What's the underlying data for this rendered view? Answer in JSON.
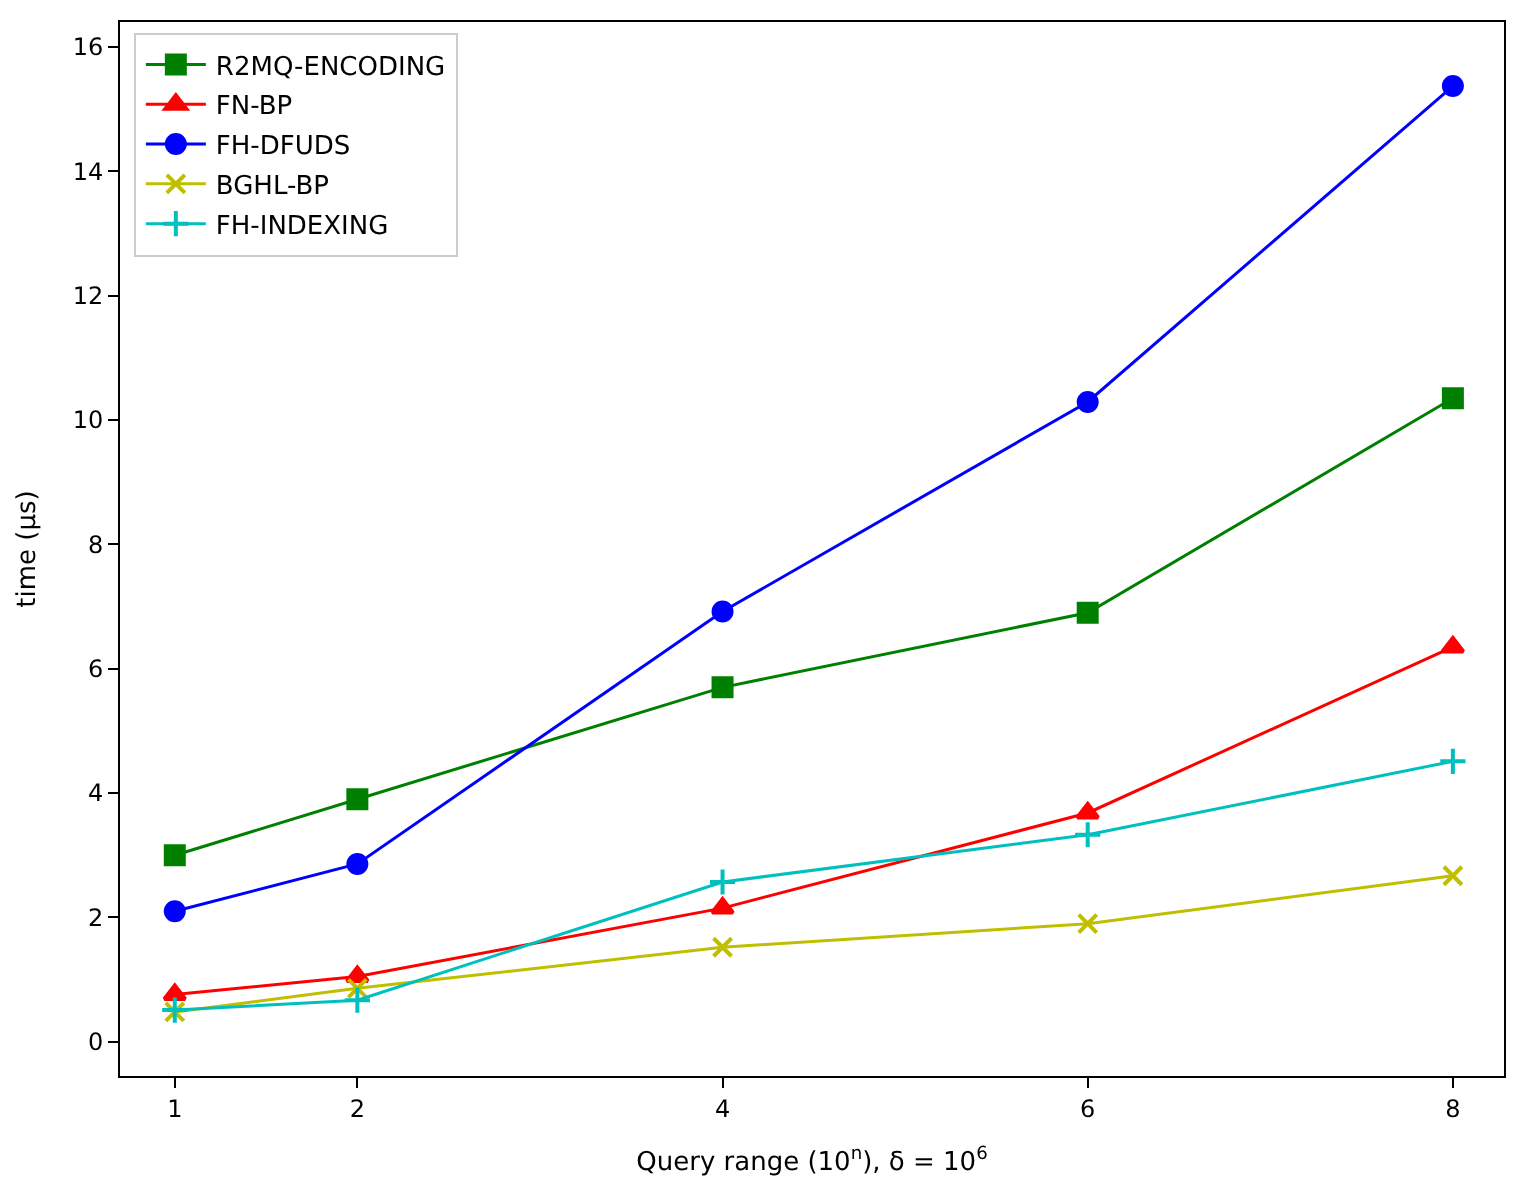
{
  "chart_data": {
    "type": "line",
    "xlabel": "Query range (10$^{n}$), δ = 10$^{6}$",
    "ylabel": "time (μs)",
    "x": [
      1,
      2,
      4,
      6,
      8
    ],
    "series": [
      {
        "name": "R2MQ-ENCODING",
        "color": "#008000",
        "marker": "square",
        "values": [
          3.0,
          3.9,
          5.7,
          6.9,
          10.35
        ]
      },
      {
        "name": "FN-BP",
        "color": "#ff0000",
        "marker": "triangle",
        "values": [
          0.76,
          1.05,
          2.15,
          3.68,
          6.35
        ]
      },
      {
        "name": "FH-DFUDS",
        "color": "#0000ff",
        "marker": "circle",
        "values": [
          2.1,
          2.86,
          6.92,
          10.29,
          15.37
        ]
      },
      {
        "name": "BGHL-BP",
        "color": "#bfbf00",
        "marker": "x",
        "values": [
          0.48,
          0.86,
          1.52,
          1.9,
          2.67
        ]
      },
      {
        "name": "FH-INDEXING",
        "color": "#00bfbf",
        "marker": "cross",
        "values": [
          0.51,
          0.67,
          2.57,
          3.33,
          4.51
        ]
      }
    ],
    "xlim": [
      0.7,
      8.28
    ],
    "xticks": [
      1,
      2,
      4,
      6,
      8
    ],
    "ylim": [
      -0.55,
      16.4
    ],
    "yticks": [
      0,
      2,
      4,
      6,
      8,
      10,
      12,
      14,
      16
    ],
    "legend": "top left",
    "line_style": "solid"
  }
}
